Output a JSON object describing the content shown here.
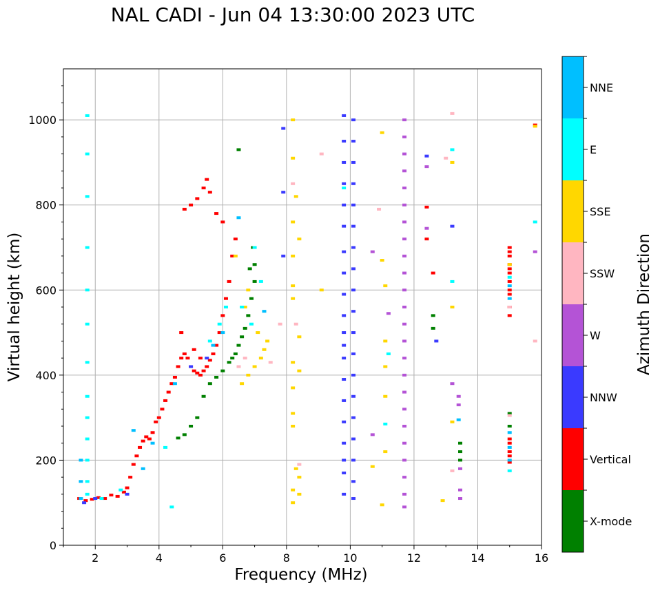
{
  "chart_data": {
    "type": "scatter",
    "title": "NAL CADI - Jun 04 13:30:00 2023 UTC",
    "xlabel": "Frequency (MHz)",
    "ylabel": "Virtual height (km)",
    "xlim": [
      1,
      16
    ],
    "ylim": [
      0,
      1120
    ],
    "xticks": [
      2,
      4,
      6,
      8,
      10,
      12,
      14,
      16
    ],
    "yticks": [
      0,
      200,
      400,
      600,
      800,
      1000
    ],
    "grid": true,
    "colorbar": {
      "label": "Azimuth Direction",
      "position": "right",
      "categories": [
        {
          "name": "X-mode",
          "color": "#008000"
        },
        {
          "name": "Vertical",
          "color": "#ff0000"
        },
        {
          "name": "NNW",
          "color": "#3a3aff"
        },
        {
          "name": "W",
          "color": "#b453d6"
        },
        {
          "name": "SSW",
          "color": "#ffb6c1"
        },
        {
          "name": "SSE",
          "color": "#ffd700"
        },
        {
          "name": "E",
          "color": "#00ffff"
        },
        {
          "name": "NNE",
          "color": "#00bfff"
        }
      ]
    },
    "series": [
      {
        "name": "Vertical",
        "color": "#ff0000",
        "points": [
          [
            1.5,
            110
          ],
          [
            1.7,
            105
          ],
          [
            1.9,
            108
          ],
          [
            2.1,
            112
          ],
          [
            2.3,
            110
          ],
          [
            2.5,
            118
          ],
          [
            2.7,
            115
          ],
          [
            2.9,
            125
          ],
          [
            3.0,
            135
          ],
          [
            3.1,
            160
          ],
          [
            3.2,
            190
          ],
          [
            3.3,
            210
          ],
          [
            3.4,
            230
          ],
          [
            3.5,
            245
          ],
          [
            3.6,
            255
          ],
          [
            3.7,
            250
          ],
          [
            3.8,
            265
          ],
          [
            3.9,
            290
          ],
          [
            4.0,
            300
          ],
          [
            4.1,
            320
          ],
          [
            4.2,
            340
          ],
          [
            4.3,
            360
          ],
          [
            4.4,
            380
          ],
          [
            4.5,
            395
          ],
          [
            4.6,
            420
          ],
          [
            4.7,
            440
          ],
          [
            4.8,
            450
          ],
          [
            4.9,
            440
          ],
          [
            5.0,
            420
          ],
          [
            5.1,
            410
          ],
          [
            5.2,
            405
          ],
          [
            5.3,
            400
          ],
          [
            5.4,
            410
          ],
          [
            5.5,
            420
          ],
          [
            5.6,
            435
          ],
          [
            5.7,
            450
          ],
          [
            5.8,
            470
          ],
          [
            5.9,
            500
          ],
          [
            6.0,
            540
          ],
          [
            6.1,
            580
          ],
          [
            6.2,
            620
          ],
          [
            6.3,
            680
          ],
          [
            6.4,
            720
          ],
          [
            4.8,
            790
          ],
          [
            5.0,
            800
          ],
          [
            5.2,
            815
          ],
          [
            5.4,
            840
          ],
          [
            5.5,
            860
          ],
          [
            5.6,
            830
          ],
          [
            5.8,
            780
          ],
          [
            6.0,
            760
          ],
          [
            4.7,
            500
          ],
          [
            5.1,
            460
          ],
          [
            5.3,
            440
          ],
          [
            15.0,
            700
          ],
          [
            15.0,
            690
          ],
          [
            15.0,
            680
          ],
          [
            15.0,
            660
          ],
          [
            15.0,
            650
          ],
          [
            15.0,
            640
          ],
          [
            15.0,
            620
          ],
          [
            15.0,
            600
          ],
          [
            15.0,
            590
          ],
          [
            15.0,
            560
          ],
          [
            15.0,
            540
          ],
          [
            15.0,
            250
          ],
          [
            15.0,
            240
          ],
          [
            15.0,
            220
          ],
          [
            15.0,
            210
          ],
          [
            15.0,
            195
          ],
          [
            15.8,
            988
          ],
          [
            12.4,
            795
          ],
          [
            12.4,
            720
          ],
          [
            12.6,
            640
          ]
        ]
      },
      {
        "name": "X-mode",
        "color": "#008000",
        "points": [
          [
            4.6,
            252
          ],
          [
            4.8,
            260
          ],
          [
            5.0,
            280
          ],
          [
            5.2,
            300
          ],
          [
            5.4,
            350
          ],
          [
            5.6,
            380
          ],
          [
            5.8,
            395
          ],
          [
            6.0,
            410
          ],
          [
            6.2,
            430
          ],
          [
            6.3,
            440
          ],
          [
            6.4,
            450
          ],
          [
            6.5,
            470
          ],
          [
            6.6,
            490
          ],
          [
            6.7,
            510
          ],
          [
            6.8,
            540
          ],
          [
            6.9,
            580
          ],
          [
            7.0,
            620
          ],
          [
            6.85,
            650
          ],
          [
            6.95,
            700
          ],
          [
            7.0,
            660
          ],
          [
            6.5,
            930
          ],
          [
            12.6,
            540
          ],
          [
            12.6,
            510
          ],
          [
            13.45,
            240
          ],
          [
            13.45,
            220
          ],
          [
            13.45,
            200
          ],
          [
            15.0,
            310
          ],
          [
            15.0,
            280
          ]
        ]
      },
      {
        "name": "NNW",
        "color": "#3a3aff",
        "points": [
          [
            1.65,
            100
          ],
          [
            2.0,
            110
          ],
          [
            3.0,
            120
          ],
          [
            5.0,
            420
          ],
          [
            5.5,
            440
          ],
          [
            9.8,
            1010
          ],
          [
            9.8,
            950
          ],
          [
            9.8,
            900
          ],
          [
            9.8,
            850
          ],
          [
            9.8,
            800
          ],
          [
            9.8,
            750
          ],
          [
            9.8,
            690
          ],
          [
            9.8,
            640
          ],
          [
            9.8,
            590
          ],
          [
            9.8,
            540
          ],
          [
            9.8,
            500
          ],
          [
            9.8,
            470
          ],
          [
            9.8,
            440
          ],
          [
            9.8,
            390
          ],
          [
            9.8,
            340
          ],
          [
            9.8,
            290
          ],
          [
            9.8,
            240
          ],
          [
            9.8,
            200
          ],
          [
            9.8,
            170
          ],
          [
            9.8,
            120
          ],
          [
            10.1,
            1000
          ],
          [
            10.1,
            950
          ],
          [
            10.1,
            900
          ],
          [
            10.1,
            850
          ],
          [
            10.1,
            800
          ],
          [
            10.1,
            750
          ],
          [
            10.1,
            700
          ],
          [
            10.1,
            650
          ],
          [
            10.1,
            600
          ],
          [
            10.1,
            550
          ],
          [
            10.1,
            500
          ],
          [
            10.1,
            450
          ],
          [
            10.1,
            400
          ],
          [
            10.1,
            350
          ],
          [
            10.1,
            300
          ],
          [
            10.1,
            250
          ],
          [
            10.1,
            200
          ],
          [
            10.1,
            150
          ],
          [
            10.1,
            110
          ],
          [
            12.4,
            915
          ],
          [
            12.7,
            480
          ],
          [
            13.2,
            750
          ],
          [
            7.9,
            980
          ],
          [
            7.9,
            830
          ],
          [
            7.9,
            680
          ]
        ]
      },
      {
        "name": "W",
        "color": "#b453d6",
        "points": [
          [
            11.7,
            1000
          ],
          [
            11.7,
            960
          ],
          [
            11.7,
            920
          ],
          [
            11.7,
            880
          ],
          [
            11.7,
            840
          ],
          [
            11.7,
            800
          ],
          [
            11.7,
            760
          ],
          [
            11.7,
            720
          ],
          [
            11.7,
            680
          ],
          [
            11.7,
            640
          ],
          [
            11.7,
            600
          ],
          [
            11.7,
            560
          ],
          [
            11.7,
            520
          ],
          [
            11.7,
            480
          ],
          [
            11.7,
            440
          ],
          [
            11.7,
            400
          ],
          [
            11.7,
            360
          ],
          [
            11.7,
            320
          ],
          [
            11.7,
            280
          ],
          [
            11.7,
            240
          ],
          [
            11.7,
            200
          ],
          [
            11.7,
            160
          ],
          [
            11.7,
            120
          ],
          [
            11.7,
            90
          ],
          [
            13.4,
            350
          ],
          [
            13.4,
            330
          ],
          [
            13.2,
            380
          ],
          [
            13.45,
            180
          ],
          [
            13.45,
            130
          ],
          [
            13.45,
            110
          ],
          [
            12.4,
            890
          ],
          [
            12.4,
            745
          ],
          [
            10.7,
            690
          ],
          [
            10.7,
            260
          ],
          [
            15.8,
            690
          ],
          [
            11.2,
            545
          ]
        ]
      },
      {
        "name": "SSW",
        "color": "#ffb6c1",
        "points": [
          [
            6.5,
            420
          ],
          [
            6.7,
            440
          ],
          [
            7.5,
            430
          ],
          [
            7.8,
            520
          ],
          [
            8.2,
            850
          ],
          [
            8.3,
            520
          ],
          [
            8.4,
            190
          ],
          [
            9.1,
            920
          ],
          [
            10.9,
            790
          ],
          [
            13.0,
            910
          ],
          [
            13.2,
            1015
          ],
          [
            15.0,
            560
          ],
          [
            15.0,
            305
          ],
          [
            15.8,
            480
          ],
          [
            13.2,
            175
          ]
        ]
      },
      {
        "name": "SSE",
        "color": "#ffd700",
        "points": [
          [
            6.6,
            380
          ],
          [
            6.8,
            400
          ],
          [
            7.0,
            420
          ],
          [
            7.2,
            440
          ],
          [
            7.3,
            460
          ],
          [
            7.4,
            480
          ],
          [
            7.1,
            500
          ],
          [
            6.7,
            560
          ],
          [
            6.8,
            600
          ],
          [
            6.4,
            680
          ],
          [
            8.2,
            1000
          ],
          [
            8.2,
            910
          ],
          [
            8.3,
            820
          ],
          [
            8.2,
            760
          ],
          [
            8.4,
            720
          ],
          [
            8.2,
            680
          ],
          [
            8.2,
            610
          ],
          [
            8.2,
            580
          ],
          [
            8.4,
            490
          ],
          [
            8.2,
            430
          ],
          [
            8.4,
            410
          ],
          [
            8.2,
            370
          ],
          [
            8.2,
            310
          ],
          [
            8.2,
            280
          ],
          [
            8.3,
            180
          ],
          [
            8.4,
            160
          ],
          [
            8.2,
            130
          ],
          [
            8.4,
            120
          ],
          [
            8.2,
            100
          ],
          [
            9.1,
            600
          ],
          [
            11.0,
            970
          ],
          [
            11.0,
            670
          ],
          [
            11.1,
            610
          ],
          [
            11.1,
            480
          ],
          [
            11.1,
            420
          ],
          [
            11.1,
            350
          ],
          [
            11.1,
            220
          ],
          [
            11.0,
            95
          ],
          [
            10.7,
            185
          ],
          [
            13.2,
            900
          ],
          [
            13.2,
            560
          ],
          [
            13.2,
            290
          ],
          [
            12.9,
            105
          ],
          [
            15.0,
            660
          ],
          [
            15.8,
            985
          ]
        ]
      },
      {
        "name": "E",
        "color": "#00ffff",
        "points": [
          [
            1.75,
            1010
          ],
          [
            1.75,
            920
          ],
          [
            1.75,
            820
          ],
          [
            1.75,
            700
          ],
          [
            1.75,
            600
          ],
          [
            1.75,
            520
          ],
          [
            1.75,
            430
          ],
          [
            1.75,
            350
          ],
          [
            1.75,
            300
          ],
          [
            1.75,
            250
          ],
          [
            1.75,
            200
          ],
          [
            1.75,
            150
          ],
          [
            1.75,
            120
          ],
          [
            2.2,
            110
          ],
          [
            2.8,
            130
          ],
          [
            5.6,
            480
          ],
          [
            5.9,
            520
          ],
          [
            6.1,
            560
          ],
          [
            6.6,
            560
          ],
          [
            6.9,
            520
          ],
          [
            7.0,
            700
          ],
          [
            7.2,
            620
          ],
          [
            9.8,
            840
          ],
          [
            11.2,
            450
          ],
          [
            11.1,
            285
          ],
          [
            13.2,
            930
          ],
          [
            13.2,
            620
          ],
          [
            15.0,
            175
          ],
          [
            15.0,
            630
          ],
          [
            15.8,
            760
          ],
          [
            4.2,
            230
          ],
          [
            4.4,
            90
          ]
        ]
      },
      {
        "name": "NNE",
        "color": "#00bfff",
        "points": [
          [
            1.55,
            200
          ],
          [
            1.55,
            150
          ],
          [
            1.55,
            110
          ],
          [
            3.2,
            270
          ],
          [
            3.5,
            180
          ],
          [
            3.8,
            240
          ],
          [
            4.5,
            380
          ],
          [
            5.7,
            470
          ],
          [
            6.0,
            500
          ],
          [
            6.5,
            770
          ],
          [
            7.3,
            550
          ],
          [
            13.4,
            295
          ],
          [
            15.0,
            265
          ],
          [
            15.0,
            230
          ],
          [
            15.0,
            200
          ],
          [
            15.0,
            580
          ],
          [
            15.0,
            610
          ]
        ]
      }
    ]
  }
}
